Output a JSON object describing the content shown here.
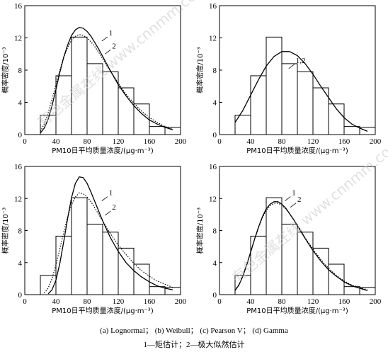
{
  "captions": {
    "line1": "(a) Lognormal； (b) Weibull； (c) Pearson V； (d) Gamma",
    "line2": "1—矩估计；2—极大似然估计"
  },
  "watermark": "有色金属在线 www.cnnmm.com",
  "chart_data": [
    {
      "id": "a",
      "type": "bar",
      "xlabel": "PM10日平均质量浓度/(μg·m⁻³)",
      "ylabel": "概率密度/10⁻³",
      "xlim": [
        0,
        200
      ],
      "ylim": [
        0,
        16
      ],
      "xticks": [
        0,
        40,
        80,
        120,
        160,
        200
      ],
      "yticks": [
        0,
        4,
        8,
        12,
        16
      ],
      "bins": [
        {
          "x0": 20,
          "x1": 40,
          "value": 2.4
        },
        {
          "x0": 40,
          "x1": 60,
          "value": 7.3
        },
        {
          "x0": 60,
          "x1": 80,
          "value": 12.1
        },
        {
          "x0": 80,
          "x1": 100,
          "value": 8.8
        },
        {
          "x0": 100,
          "x1": 120,
          "value": 7.8
        },
        {
          "x0": 120,
          "x1": 140,
          "value": 5.8
        },
        {
          "x0": 140,
          "x1": 160,
          "value": 3.8
        },
        {
          "x0": 160,
          "x1": 180,
          "value": 1.0
        },
        {
          "x0": 180,
          "x1": 200,
          "value": 0.9
        }
      ],
      "series": [
        {
          "name": "1",
          "style": "solid",
          "x": [
            20,
            25,
            30,
            35,
            40,
            45,
            50,
            55,
            60,
            65,
            70,
            75,
            80,
            85,
            90,
            95,
            100,
            105,
            110,
            120,
            130,
            140,
            150,
            160,
            170,
            180,
            190
          ],
          "y": [
            0.2,
            0.8,
            1.9,
            3.6,
            5.6,
            7.7,
            9.6,
            11.1,
            12.3,
            13.0,
            13.3,
            13.2,
            12.8,
            12.2,
            11.4,
            10.6,
            9.7,
            8.8,
            7.9,
            6.2,
            4.8,
            3.6,
            2.6,
            1.8,
            1.3,
            0.9,
            0.6
          ]
        },
        {
          "name": "2",
          "style": "dotted",
          "x": [
            20,
            25,
            30,
            35,
            40,
            45,
            50,
            55,
            60,
            65,
            70,
            75,
            80,
            85,
            90,
            95,
            100,
            105,
            110,
            120,
            130,
            140,
            150,
            160,
            170,
            180,
            190
          ],
          "y": [
            0.4,
            1.3,
            2.7,
            4.4,
            6.2,
            8.0,
            9.6,
            10.8,
            11.7,
            12.2,
            12.4,
            12.3,
            12.0,
            11.5,
            10.9,
            10.2,
            9.4,
            8.6,
            7.9,
            6.4,
            5.0,
            3.9,
            2.9,
            2.1,
            1.5,
            1.0,
            0.7
          ]
        }
      ],
      "curve_labels": [
        {
          "text": "1",
          "x": 108,
          "y": 12.3
        },
        {
          "text": "2",
          "x": 112,
          "y": 10.7
        }
      ]
    },
    {
      "id": "b",
      "type": "bar",
      "xlabel": "PM10日平均质量浓度/(μg·m⁻³)",
      "ylabel": "概率密度/10⁻³",
      "xlim": [
        0,
        200
      ],
      "ylim": [
        0,
        16
      ],
      "xticks": [
        0,
        40,
        80,
        120,
        160,
        200
      ],
      "yticks": [
        0,
        4,
        8,
        12,
        16
      ],
      "bins": [
        {
          "x0": 20,
          "x1": 40,
          "value": 2.4
        },
        {
          "x0": 40,
          "x1": 60,
          "value": 7.3
        },
        {
          "x0": 60,
          "x1": 80,
          "value": 12.1
        },
        {
          "x0": 80,
          "x1": 100,
          "value": 8.8
        },
        {
          "x0": 100,
          "x1": 120,
          "value": 7.8
        },
        {
          "x0": 120,
          "x1": 140,
          "value": 5.8
        },
        {
          "x0": 140,
          "x1": 160,
          "value": 3.8
        },
        {
          "x0": 160,
          "x1": 180,
          "value": 1.0
        },
        {
          "x0": 180,
          "x1": 200,
          "value": 0.9
        }
      ],
      "series": [
        {
          "name": "1,2",
          "style": "solid",
          "x": [
            20,
            30,
            40,
            50,
            60,
            70,
            80,
            90,
            100,
            110,
            120,
            130,
            140,
            150,
            160,
            170,
            180,
            190
          ],
          "y": [
            1.5,
            3.0,
            4.9,
            6.8,
            8.5,
            9.7,
            10.3,
            10.3,
            9.8,
            8.8,
            7.5,
            6.0,
            4.6,
            3.2,
            2.1,
            1.3,
            0.8,
            0.4
          ]
        }
      ],
      "curve_labels": [
        {
          "text": "1,2",
          "x": 98,
          "y": 8.9
        }
      ]
    },
    {
      "id": "c",
      "type": "bar",
      "xlabel": "PM10日平均质量浓度/(μg·m⁻³)",
      "ylabel": "概率密度/10⁻³",
      "xlim": [
        0,
        200
      ],
      "ylim": [
        0,
        16
      ],
      "xticks": [
        0,
        40,
        80,
        120,
        160,
        200
      ],
      "yticks": [
        0,
        4,
        8,
        12,
        16
      ],
      "bins": [
        {
          "x0": 20,
          "x1": 40,
          "value": 2.4
        },
        {
          "x0": 40,
          "x1": 60,
          "value": 7.3
        },
        {
          "x0": 60,
          "x1": 80,
          "value": 12.1
        },
        {
          "x0": 80,
          "x1": 100,
          "value": 8.8
        },
        {
          "x0": 100,
          "x1": 120,
          "value": 7.8
        },
        {
          "x0": 120,
          "x1": 140,
          "value": 5.8
        },
        {
          "x0": 140,
          "x1": 160,
          "value": 3.8
        },
        {
          "x0": 160,
          "x1": 180,
          "value": 1.0
        },
        {
          "x0": 180,
          "x1": 200,
          "value": 0.9
        }
      ],
      "series": [
        {
          "name": "1",
          "style": "solid",
          "x": [
            30,
            35,
            40,
            45,
            50,
            55,
            60,
            65,
            70,
            75,
            80,
            85,
            90,
            95,
            100,
            110,
            120,
            130,
            140,
            150,
            160,
            170,
            180,
            190
          ],
          "y": [
            0.1,
            0.6,
            1.8,
            3.9,
            6.6,
            9.5,
            12.1,
            13.9,
            14.7,
            14.6,
            13.9,
            12.8,
            11.6,
            10.4,
            9.2,
            7.1,
            5.4,
            4.0,
            3.0,
            2.2,
            1.6,
            1.1,
            0.8,
            0.6
          ]
        },
        {
          "name": "2",
          "style": "dotted",
          "x": [
            25,
            30,
            35,
            40,
            45,
            50,
            55,
            60,
            65,
            70,
            75,
            80,
            85,
            90,
            95,
            100,
            110,
            120,
            130,
            140,
            150,
            160,
            170,
            180,
            190
          ],
          "y": [
            0.2,
            0.8,
            2.0,
            3.7,
            5.7,
            7.8,
            9.7,
            11.2,
            12.2,
            12.7,
            12.6,
            12.2,
            11.6,
            10.8,
            10.0,
            9.2,
            7.6,
            6.2,
            5.0,
            3.9,
            3.0,
            2.3,
            1.7,
            1.3,
            0.9
          ]
        }
      ],
      "curve_labels": [
        {
          "text": "1",
          "x": 108,
          "y": 12.4
        },
        {
          "text": "2",
          "x": 112,
          "y": 10.6
        }
      ]
    },
    {
      "id": "d",
      "type": "bar",
      "xlabel": "PM10日平均质量浓度/(μg·m⁻³)",
      "ylabel": "概率密度/10⁻³",
      "xlim": [
        0,
        200
      ],
      "ylim": [
        0,
        16
      ],
      "xticks": [
        0,
        40,
        80,
        120,
        160,
        200
      ],
      "yticks": [
        0,
        4,
        8,
        12,
        16
      ],
      "bins": [
        {
          "x0": 20,
          "x1": 40,
          "value": 2.4
        },
        {
          "x0": 40,
          "x1": 60,
          "value": 7.3
        },
        {
          "x0": 60,
          "x1": 80,
          "value": 12.1
        },
        {
          "x0": 80,
          "x1": 100,
          "value": 8.8
        },
        {
          "x0": 100,
          "x1": 120,
          "value": 7.8
        },
        {
          "x0": 120,
          "x1": 140,
          "value": 5.8
        },
        {
          "x0": 140,
          "x1": 160,
          "value": 3.8
        },
        {
          "x0": 160,
          "x1": 180,
          "value": 1.0
        },
        {
          "x0": 180,
          "x1": 200,
          "value": 0.9
        }
      ],
      "series": [
        {
          "name": "1",
          "style": "solid",
          "x": [
            20,
            25,
            30,
            35,
            40,
            45,
            50,
            55,
            60,
            65,
            70,
            75,
            80,
            85,
            90,
            95,
            100,
            110,
            120,
            130,
            140,
            150,
            160,
            170,
            180,
            190
          ],
          "y": [
            0.5,
            1.2,
            2.3,
            3.7,
            5.3,
            6.9,
            8.4,
            9.7,
            10.7,
            11.3,
            11.6,
            11.6,
            11.3,
            10.8,
            10.1,
            9.4,
            8.6,
            7.0,
            5.5,
            4.2,
            3.1,
            2.3,
            1.6,
            1.1,
            0.8,
            0.5
          ]
        },
        {
          "name": "2",
          "style": "dotted",
          "x": [
            20,
            25,
            30,
            35,
            40,
            45,
            50,
            55,
            60,
            65,
            70,
            75,
            80,
            85,
            90,
            95,
            100,
            110,
            120,
            130,
            140,
            150,
            160,
            170,
            180,
            190
          ],
          "y": [
            0.6,
            1.3,
            2.4,
            3.8,
            5.3,
            6.9,
            8.3,
            9.6,
            10.5,
            11.1,
            11.4,
            11.4,
            11.2,
            10.7,
            10.1,
            9.4,
            8.7,
            7.1,
            5.7,
            4.4,
            3.3,
            2.4,
            1.7,
            1.2,
            0.9,
            0.6
          ]
        }
      ],
      "curve_labels": [
        {
          "text": "1",
          "x": 93,
          "y": 12.4
        },
        {
          "text": "2",
          "x": 100,
          "y": 11.6
        }
      ]
    }
  ]
}
